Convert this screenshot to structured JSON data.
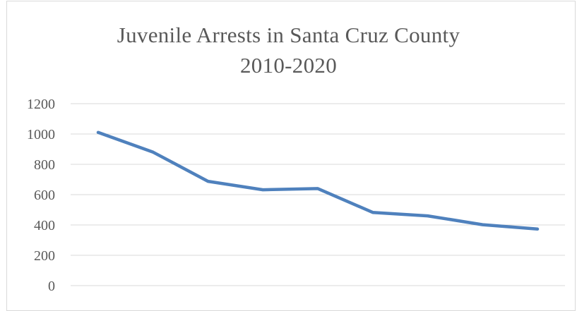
{
  "chart_data": {
    "type": "line",
    "title": "Juvenile Arrests in Santa Cruz County",
    "subtitle": "2010-2020",
    "xlabel": "",
    "ylabel": "",
    "ylim": [
      0,
      1200
    ],
    "yticks": [
      0,
      200,
      400,
      600,
      800,
      1000,
      1200
    ],
    "grid": true,
    "legend": "none",
    "series": [
      {
        "values": [
          1010,
          880,
          688,
          632,
          640,
          483,
          460,
          402,
          373
        ],
        "color": "#4f81bd"
      }
    ]
  },
  "colors": {
    "gridline": "#d9d9d9",
    "text": "#595959",
    "line": "#4f81bd"
  }
}
